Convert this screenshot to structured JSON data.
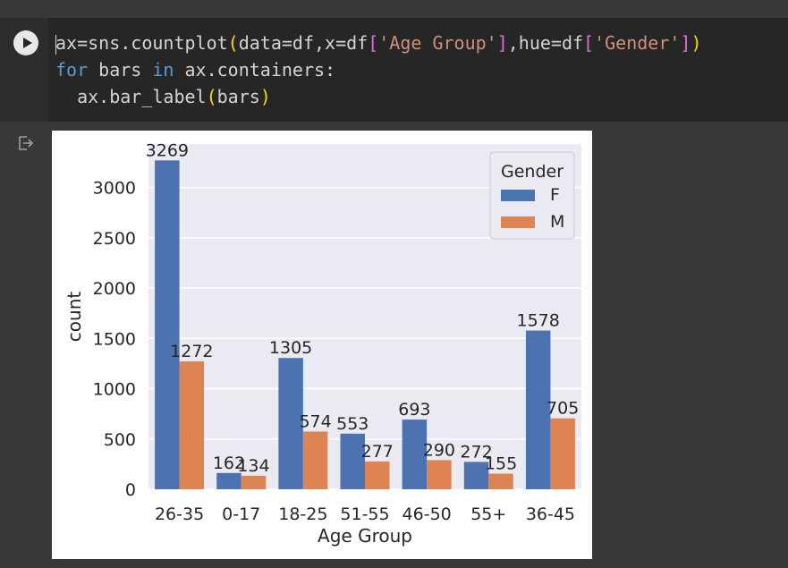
{
  "cell": {
    "code_lines": [
      [
        {
          "t": "ax=sns.countplot",
          "c": ""
        },
        {
          "t": "(",
          "c": "br1"
        },
        {
          "t": "data=df,x=df",
          "c": ""
        },
        {
          "t": "[",
          "c": "br2"
        },
        {
          "t": "'Age Group'",
          "c": "str"
        },
        {
          "t": "]",
          "c": "br2"
        },
        {
          "t": ",hue=df",
          "c": ""
        },
        {
          "t": "[",
          "c": "br2"
        },
        {
          "t": "'Gender'",
          "c": "str"
        },
        {
          "t": "]",
          "c": "br2"
        },
        {
          "t": ")",
          "c": "br1"
        }
      ],
      [
        {
          "t": "for",
          "c": "kw"
        },
        {
          "t": " bars ",
          "c": ""
        },
        {
          "t": "in",
          "c": "kw"
        },
        {
          "t": " ax.containers:",
          "c": ""
        }
      ],
      [
        {
          "t": "  ax.bar_label",
          "c": ""
        },
        {
          "t": "(",
          "c": "br1"
        },
        {
          "t": "bars",
          "c": ""
        },
        {
          "t": ")",
          "c": "br1"
        }
      ]
    ]
  },
  "colors": {
    "F": "#4c72b0",
    "M": "#dd8452",
    "plot_bg": "#eaeaf2",
    "grid": "#ffffff"
  },
  "chart_data": {
    "type": "bar",
    "categories": [
      "26-35",
      "0-17",
      "18-25",
      "51-55",
      "46-50",
      "55+",
      "36-45"
    ],
    "series": [
      {
        "name": "F",
        "values": [
          3269,
          162,
          1305,
          553,
          693,
          272,
          1578
        ]
      },
      {
        "name": "M",
        "values": [
          1272,
          134,
          574,
          277,
          290,
          155,
          705
        ]
      }
    ],
    "xlabel": "Age Group",
    "ylabel": "count",
    "ylim": [
      0,
      3432
    ],
    "yticks": [
      0,
      500,
      1000,
      1500,
      2000,
      2500,
      3000
    ],
    "legend_title": "Gender",
    "legend_position": "top-right",
    "grid": true
  }
}
